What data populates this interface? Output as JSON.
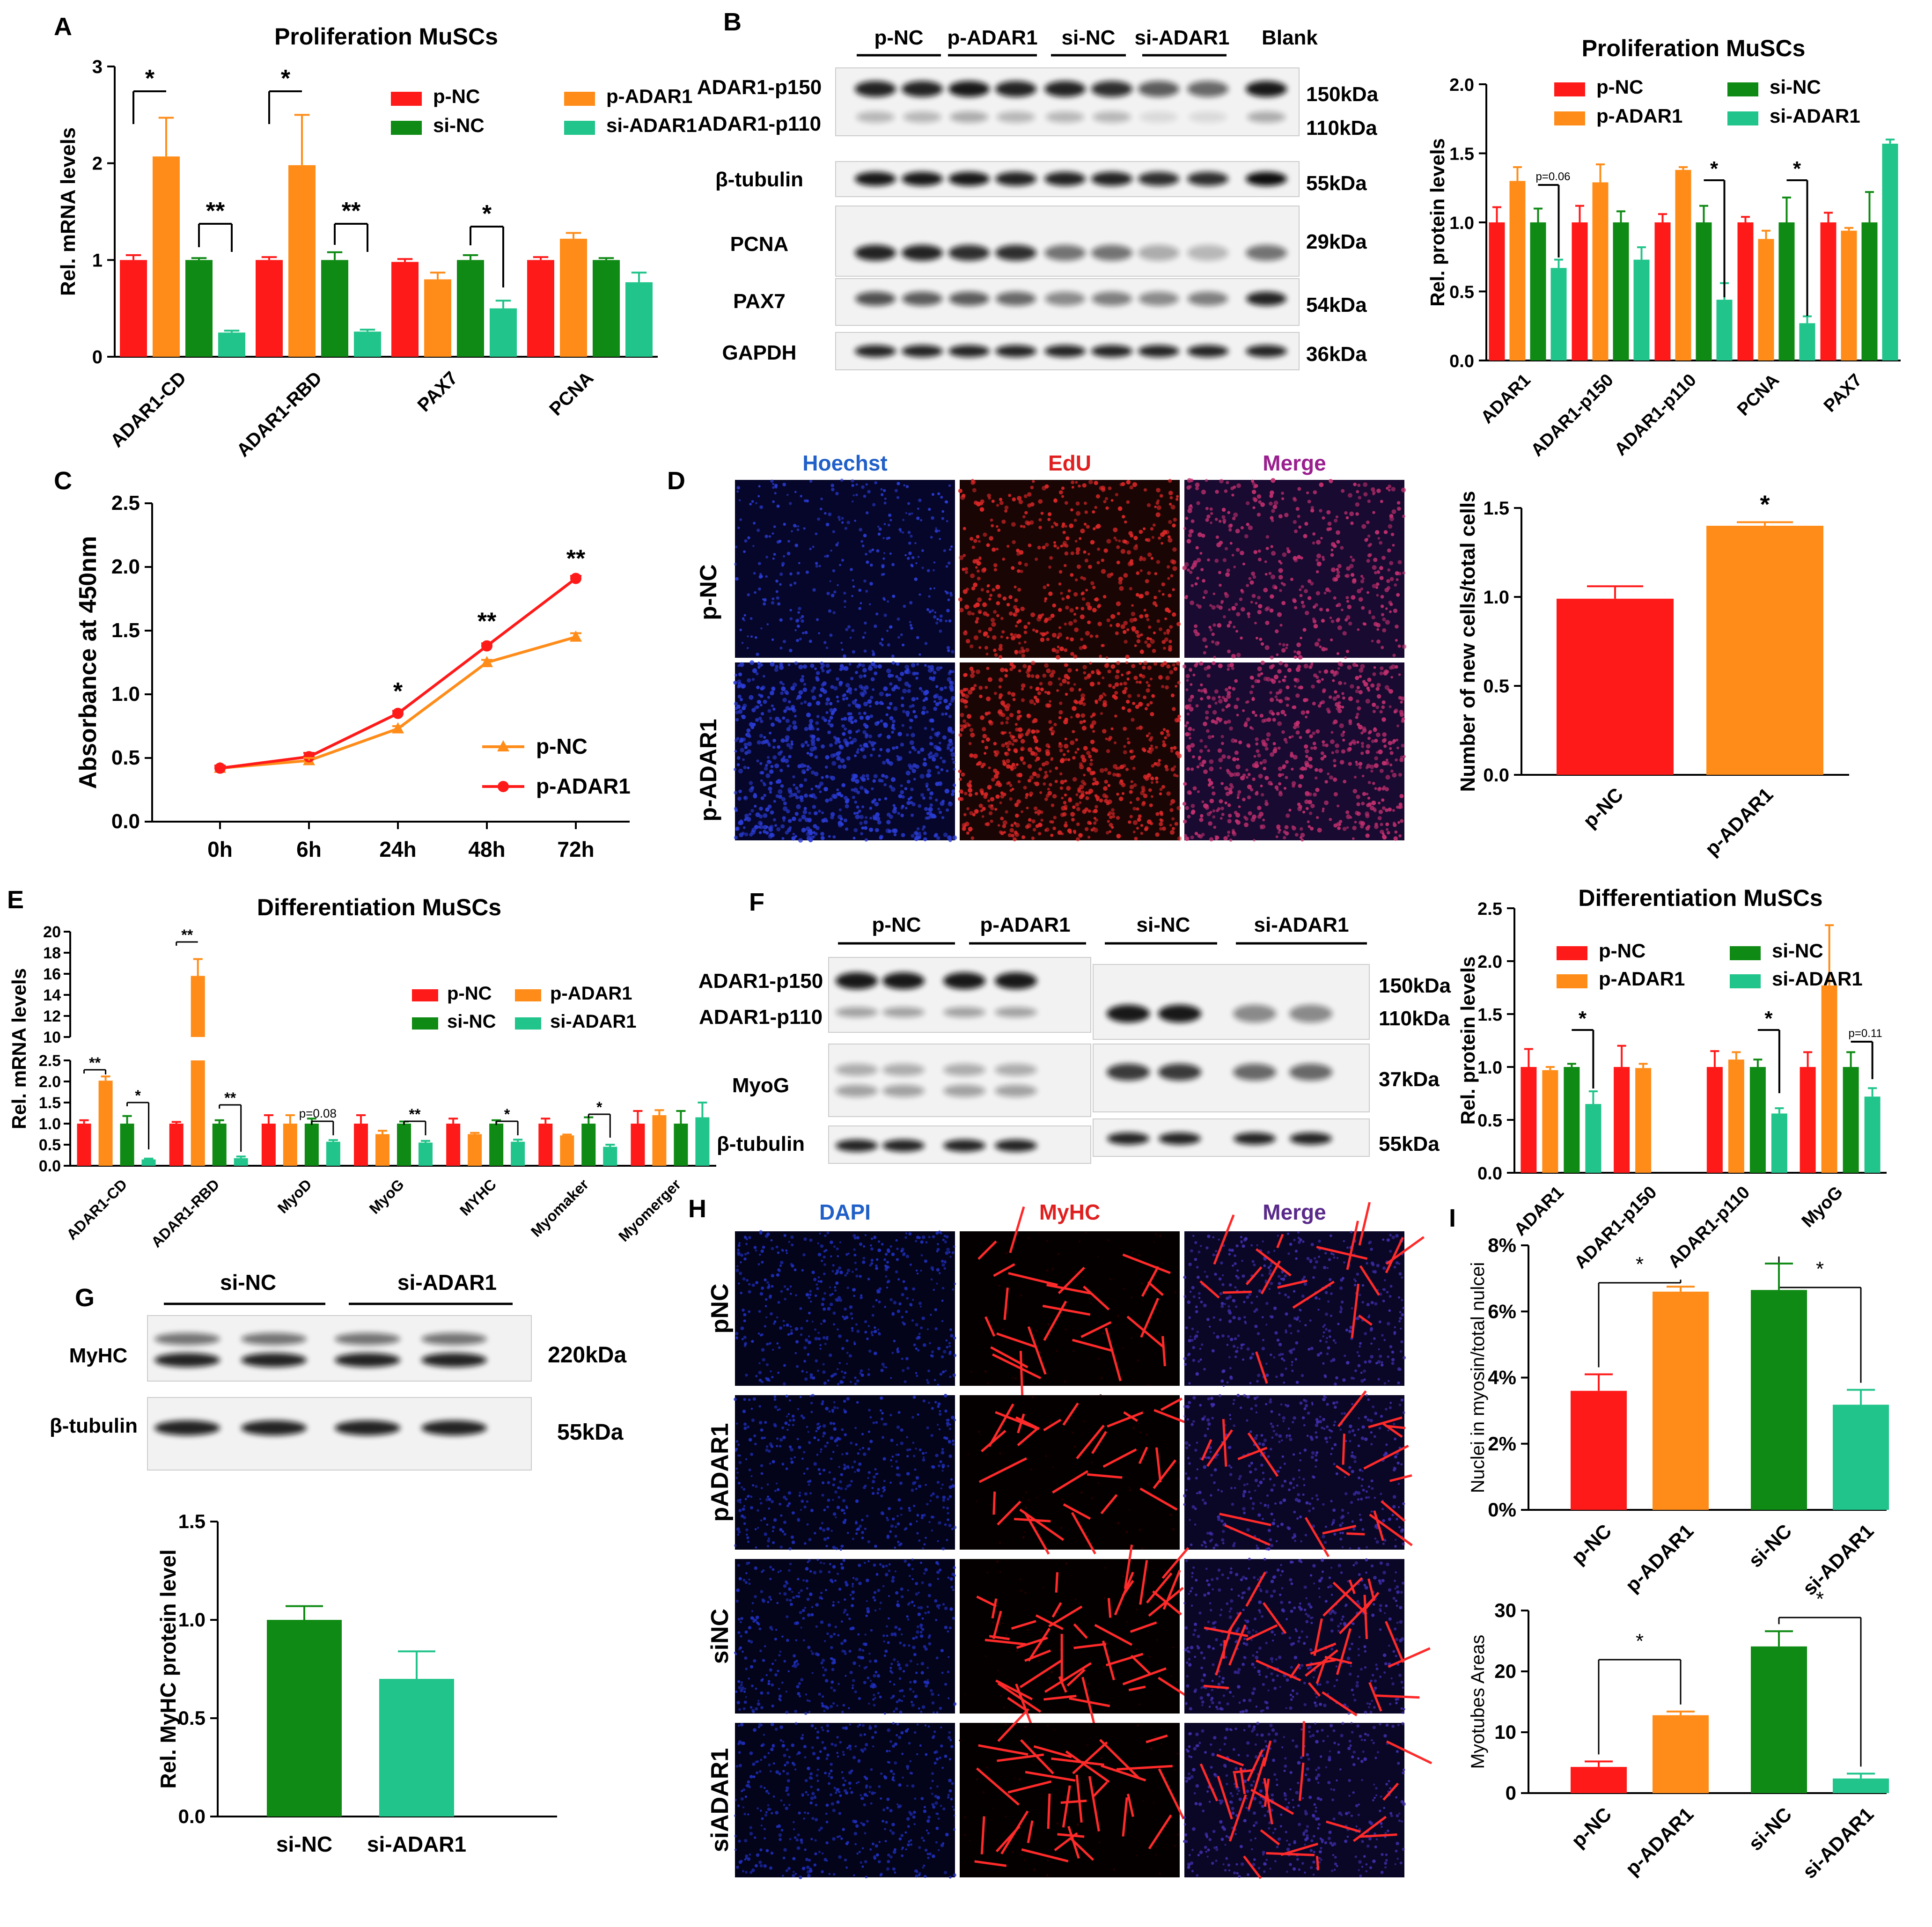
{
  "colors": {
    "p_NC": "#ff1a1a",
    "p_ADAR1": "#ff8c19",
    "si_NC": "#0f8a14",
    "si_ADAR1": "#21c48a",
    "hoechst": "#2060c8",
    "edu": "#e02020",
    "merge": "#9a1f8f",
    "dapi": "#2060c8",
    "myhc": "#e02020",
    "merge_h": "#5a2a8a"
  },
  "panels": {
    "A": {
      "letter": "A",
      "chart_data": {
        "type": "bar",
        "title": "Proliferation MuSCs",
        "ylabel": "Rel. mRNA levels",
        "ylim": [
          0,
          3
        ],
        "yticks": [
          "0",
          "1",
          "2",
          "3"
        ],
        "categories": [
          "ADAR1-CD",
          "ADAR1-RBD",
          "PAX7",
          "PCNA"
        ],
        "legend": [
          "p-NC",
          "p-ADAR1",
          "si-NC",
          "si-ADAR1"
        ],
        "legend_placement": "top-right",
        "series": [
          {
            "name": "p-NC",
            "values": [
              1.0,
              1.0,
              0.98,
              1.0
            ],
            "errors": [
              0.05,
              0.03,
              0.03,
              0.03
            ]
          },
          {
            "name": "p-ADAR1",
            "values": [
              2.07,
              1.98,
              0.8,
              1.22
            ],
            "errors": [
              0.4,
              0.52,
              0.07,
              0.06
            ]
          },
          {
            "name": "si-NC",
            "values": [
              1.0,
              1.0,
              1.0,
              1.0
            ],
            "errors": [
              0.02,
              0.08,
              0.05,
              0.02
            ]
          },
          {
            "name": "si-ADAR1",
            "values": [
              0.25,
              0.26,
              0.5,
              0.77
            ],
            "errors": [
              0.02,
              0.02,
              0.08,
              0.1
            ]
          }
        ],
        "annotations": [
          "*",
          "**",
          "*",
          "**",
          "*"
        ]
      }
    },
    "B": {
      "letter": "B",
      "groups": [
        "p-NC",
        "p-ADAR1",
        "si-NC",
        "si-ADAR1",
        "Blank"
      ],
      "rows": [
        "ADAR1-p150",
        "ADAR1-p110",
        "β-tubulin",
        "PCNA",
        "PAX7",
        "GAPDH"
      ],
      "sizes": [
        "150kDa",
        "110kDa",
        "55kDa",
        "29kDa",
        "54kDa",
        "36kDa"
      ],
      "chart_data": {
        "type": "bar",
        "title": "Proliferation MuSCs",
        "ylabel": "Rel. protein levels",
        "ylim": [
          0,
          2.0
        ],
        "yticks": [
          "0.0",
          "0.5",
          "1.0",
          "1.5",
          "2.0"
        ],
        "categories": [
          "ADAR1",
          "ADAR1-p150",
          "ADAR1-p110",
          "PCNA",
          "PAX7"
        ],
        "legend": [
          "p-NC",
          "si-NC",
          "p-ADAR1",
          "si-ADAR1"
        ],
        "legend_placement": "top",
        "series": [
          {
            "name": "p-NC",
            "values": [
              1.0,
              1.0,
              1.0,
              1.0,
              1.0
            ],
            "errors": [
              0.11,
              0.12,
              0.06,
              0.04,
              0.07
            ]
          },
          {
            "name": "p-ADAR1",
            "values": [
              1.3,
              1.29,
              1.38,
              0.88,
              0.94
            ],
            "errors": [
              0.1,
              0.13,
              0.02,
              0.06,
              0.02
            ]
          },
          {
            "name": "si-NC",
            "values": [
              1.0,
              1.0,
              1.0,
              1.0,
              1.0
            ],
            "errors": [
              0.1,
              0.08,
              0.12,
              0.18,
              0.22
            ]
          },
          {
            "name": "si-ADAR1",
            "values": [
              0.67,
              0.73,
              0.44,
              0.27,
              1.57
            ],
            "errors": [
              0.06,
              0.09,
              0.12,
              0.05,
              0.03
            ]
          }
        ],
        "annotations": [
          "p=0.06",
          "*",
          "*"
        ]
      }
    },
    "C": {
      "letter": "C",
      "chart_data": {
        "type": "line",
        "ylabel": "Absorbance at 450nm",
        "ylim": [
          0,
          2.5
        ],
        "yticks": [
          "0.0",
          "0.5",
          "1.0",
          "1.5",
          "2.0",
          "2.5"
        ],
        "categories": [
          "0h",
          "6h",
          "24h",
          "48h",
          "72h"
        ],
        "legend_placement": "bottom-right",
        "series": [
          {
            "name": "p-NC",
            "values": [
              0.42,
              0.48,
              0.73,
              1.25,
              1.45
            ],
            "errors": [
              0.02,
              0.02,
              0.02,
              0.02,
              0.03
            ]
          },
          {
            "name": "p-ADAR1",
            "values": [
              0.42,
              0.51,
              0.85,
              1.38,
              1.91
            ],
            "errors": [
              0.02,
              0.03,
              0.02,
              0.02,
              0.02
            ]
          }
        ],
        "annotations": [
          "*",
          "**",
          "**"
        ]
      }
    },
    "D": {
      "letter": "D",
      "columns": [
        "Hoechst",
        "EdU",
        "Merge"
      ],
      "rows": [
        "p-NC",
        "p-ADAR1"
      ],
      "chart_data": {
        "type": "bar",
        "ylabel": "Number of new cells/total cells",
        "ylim": [
          0,
          1.5
        ],
        "yticks": [
          "0.0",
          "0.5",
          "1.0",
          "1.5"
        ],
        "categories": [
          "p-NC",
          "p-ADAR1"
        ],
        "values": [
          0.99,
          1.4
        ],
        "errors": [
          0.07,
          0.02
        ],
        "annotations": [
          "*"
        ]
      }
    },
    "E": {
      "letter": "E",
      "chart_data": {
        "type": "bar",
        "title": "Differentiation MuSCs",
        "ylabel": "Rel. mRNA levels",
        "ylim_lower": [
          0,
          2.5
        ],
        "ylim_upper": [
          10,
          20
        ],
        "yticks_lower": [
          "0.0",
          "0.5",
          "1.0",
          "1.5",
          "2.0",
          "2.5"
        ],
        "yticks_upper": [
          "10",
          "12",
          "14",
          "16",
          "18",
          "20"
        ],
        "categories": [
          "ADAR1-CD",
          "ADAR1-RBD",
          "MyoD",
          "MyoG",
          "MYHC",
          "Myomaker",
          "Myomerger"
        ],
        "legend": [
          "p-NC",
          "p-ADAR1",
          "si-NC",
          "si-ADAR1"
        ],
        "legend_placement": "right",
        "series": [
          {
            "name": "p-NC",
            "values": [
              1.0,
              1.0,
              1.0,
              1.0,
              1.0,
              1.0,
              1.0
            ],
            "errors": [
              0.08,
              0.04,
              0.2,
              0.2,
              0.12,
              0.12,
              0.3
            ]
          },
          {
            "name": "p-ADAR1",
            "values": [
              2.02,
              15.8,
              1.0,
              0.75,
              0.75,
              0.72,
              1.2
            ],
            "errors": [
              0.1,
              1.6,
              0.2,
              0.08,
              0.03,
              0.02,
              0.12
            ]
          },
          {
            "name": "si-NC",
            "values": [
              1.0,
              1.0,
              1.0,
              1.0,
              1.0,
              1.0,
              1.0
            ],
            "errors": [
              0.18,
              0.08,
              0.12,
              0.05,
              0.08,
              0.15,
              0.3
            ]
          },
          {
            "name": "si-ADAR1",
            "values": [
              0.15,
              0.18,
              0.57,
              0.55,
              0.57,
              0.45,
              1.15
            ],
            "errors": [
              0.02,
              0.04,
              0.04,
              0.04,
              0.05,
              0.05,
              0.35
            ]
          }
        ],
        "annotations": [
          "**",
          "*",
          "**",
          "**",
          "p=0.08",
          "**",
          "*",
          "*"
        ]
      }
    },
    "F": {
      "letter": "F",
      "groups": [
        "p-NC",
        "p-ADAR1",
        "si-NC",
        "si-ADAR1"
      ],
      "rows": [
        "ADAR1-p150",
        "ADAR1-p110",
        "MyoG",
        "β-tubulin"
      ],
      "sizes": [
        "150kDa",
        "110kDa",
        "37kDa",
        "55kDa"
      ],
      "chart_data": {
        "type": "bar",
        "title": "Differentiation MuSCs",
        "ylabel": "Rel. protein levels",
        "ylim": [
          0,
          2.5
        ],
        "yticks": [
          "0.0",
          "0.5",
          "1.0",
          "1.5",
          "2.0",
          "2.5"
        ],
        "categories": [
          "ADAR1",
          "ADAR1-p150",
          "ADAR1-p110",
          "MyoG"
        ],
        "legend": [
          "p-NC",
          "si-NC",
          "p-ADAR1",
          "si-ADAR1"
        ],
        "legend_placement": "top",
        "series": [
          {
            "name": "p-NC",
            "values": [
              1.0,
              1.0,
              1.0,
              1.0
            ],
            "errors": [
              0.17,
              0.2,
              0.15,
              0.14
            ]
          },
          {
            "name": "p-ADAR1",
            "values": [
              0.97,
              0.99,
              1.07,
              1.77
            ],
            "errors": [
              0.03,
              0.04,
              0.07,
              0.57
            ]
          },
          {
            "name": "si-NC",
            "values": [
              1.0,
              null,
              1.0,
              1.0
            ],
            "errors": [
              0.03,
              null,
              0.07,
              0.14
            ]
          },
          {
            "name": "si-ADAR1",
            "values": [
              0.65,
              null,
              0.56,
              0.72
            ],
            "errors": [
              0.12,
              null,
              0.05,
              0.08
            ]
          }
        ],
        "annotations": [
          "*",
          "*",
          "p=0.11"
        ]
      }
    },
    "G": {
      "letter": "G",
      "groups": [
        "si-NC",
        "si-ADAR1"
      ],
      "rows": [
        "MyHC",
        "β-tubulin"
      ],
      "sizes": [
        "220kDa",
        "55kDa"
      ],
      "chart_data": {
        "type": "bar",
        "ylabel": "Rel. MyHC protein level",
        "ylim": [
          0,
          1.5
        ],
        "yticks": [
          "0.0",
          "0.5",
          "1.0",
          "1.5"
        ],
        "categories": [
          "si-NC",
          "si-ADAR1"
        ],
        "values": [
          1.0,
          0.7
        ],
        "errors": [
          0.07,
          0.14
        ]
      }
    },
    "H": {
      "letter": "H",
      "columns": [
        "DAPI",
        "MyHC",
        "Merge"
      ],
      "rows": [
        "pNC",
        "pADAR1",
        "siNC",
        "siADAR1"
      ]
    },
    "I": {
      "letter": "I",
      "chart_data": [
        {
          "type": "bar",
          "ylabel": "Nuclei in myosin/total nulcei",
          "ylim": [
            0,
            8
          ],
          "yticks": [
            "0%",
            "2%",
            "4%",
            "6%",
            "8%"
          ],
          "categories": [
            "p-NC",
            "p-ADAR1",
            "si-NC",
            "si-ADAR1"
          ],
          "values": [
            3.6,
            6.6,
            6.65,
            3.18
          ],
          "errors": [
            0.5,
            0.15,
            0.8,
            0.45
          ],
          "annotations": [
            "*",
            "*"
          ]
        },
        {
          "type": "bar",
          "ylabel": "Myotubes Areas",
          "ylim": [
            0,
            30
          ],
          "yticks": [
            "0",
            "10",
            "20",
            "30"
          ],
          "categories": [
            "p-NC",
            "p-ADAR1",
            "si-NC",
            "si-ADAR1"
          ],
          "values": [
            4.3,
            12.8,
            24.1,
            2.4
          ],
          "errors": [
            0.9,
            0.6,
            2.5,
            0.8
          ],
          "annotations": [
            "*",
            "*"
          ]
        }
      ]
    }
  }
}
